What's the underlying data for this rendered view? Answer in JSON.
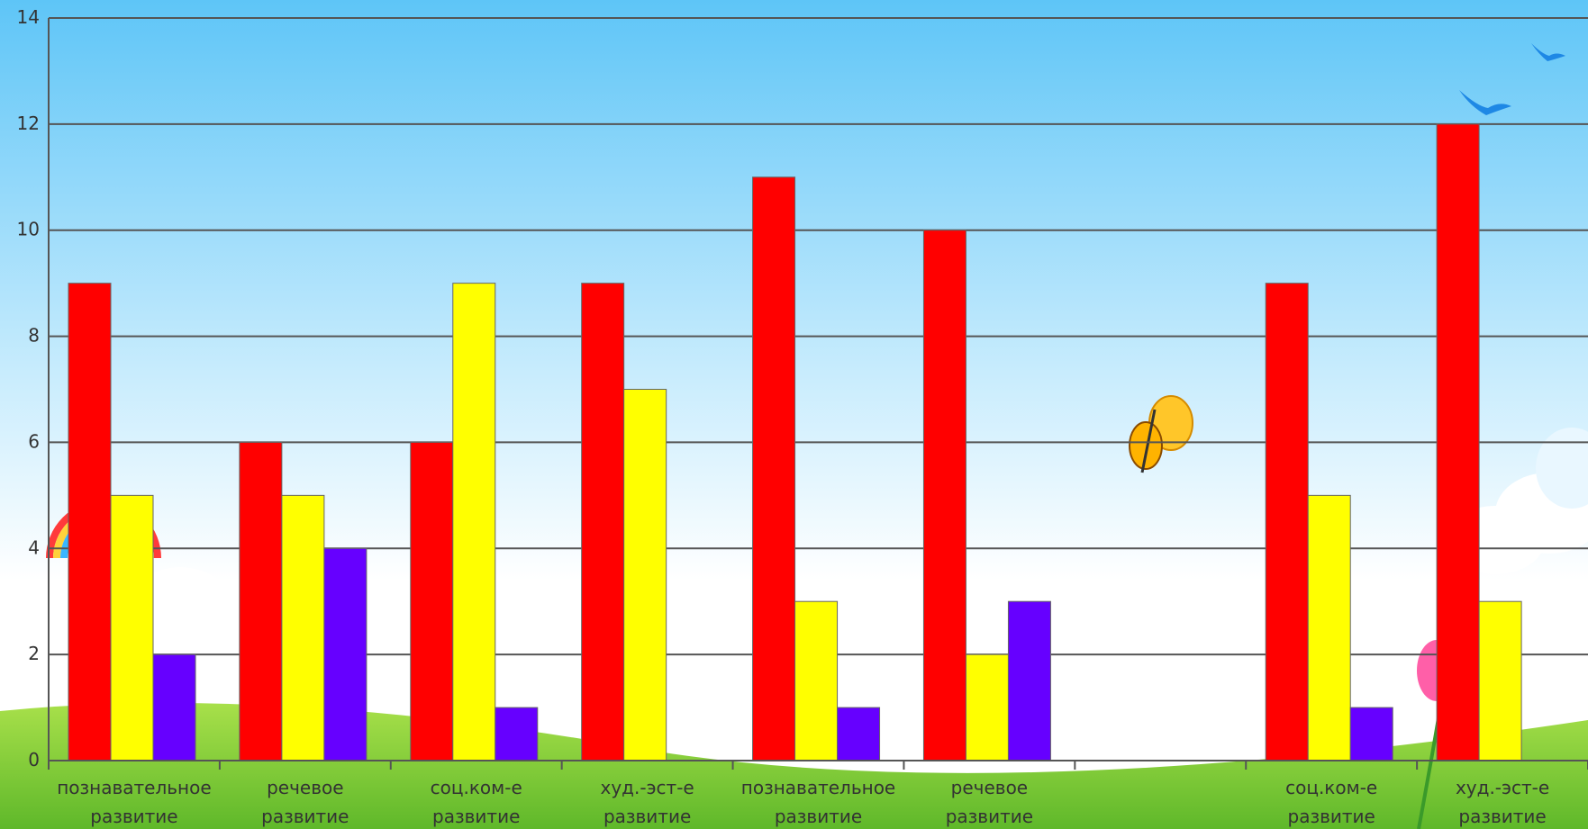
{
  "chart_data": {
    "type": "bar",
    "categories": [
      "познавательное развитие",
      "речевое развитие",
      "соц.ком-е развитие",
      "худ.-эст-е развитие",
      "познавательное развитие",
      "речевое развитие",
      "",
      "соц.ком-е развитие",
      "худ.-эст-е развитие"
    ],
    "category_lines": [
      [
        "познавательное",
        "развитие"
      ],
      [
        "речевое",
        "развитие"
      ],
      [
        "соц.ком-е",
        "развитие"
      ],
      [
        "худ.-эст-е",
        "развитие"
      ],
      [
        "познавательное",
        "развитие"
      ],
      [
        "речевое",
        "развитие"
      ],
      [
        "",
        ""
      ],
      [
        "соц.ком-е",
        "развитие"
      ],
      [
        "худ.-эст-е",
        "развитие"
      ]
    ],
    "series": [
      {
        "values": [
          9,
          6,
          6,
          9,
          11,
          10,
          null,
          9,
          12
        ]
      },
      {
        "values": [
          5,
          5,
          9,
          7,
          3,
          2,
          null,
          5,
          3
        ]
      },
      {
        "values": [
          2,
          4,
          1,
          0,
          1,
          3,
          null,
          1,
          null
        ]
      }
    ],
    "colors": [
      "#ff0000",
      "#ffff00",
      "#6600ff"
    ],
    "ylim": [
      0,
      14
    ],
    "yticks": [
      "0",
      "2",
      "4",
      "6",
      "8",
      "10",
      "12",
      "14"
    ],
    "grid": true,
    "title": "",
    "xlabel": "",
    "ylabel": ""
  }
}
